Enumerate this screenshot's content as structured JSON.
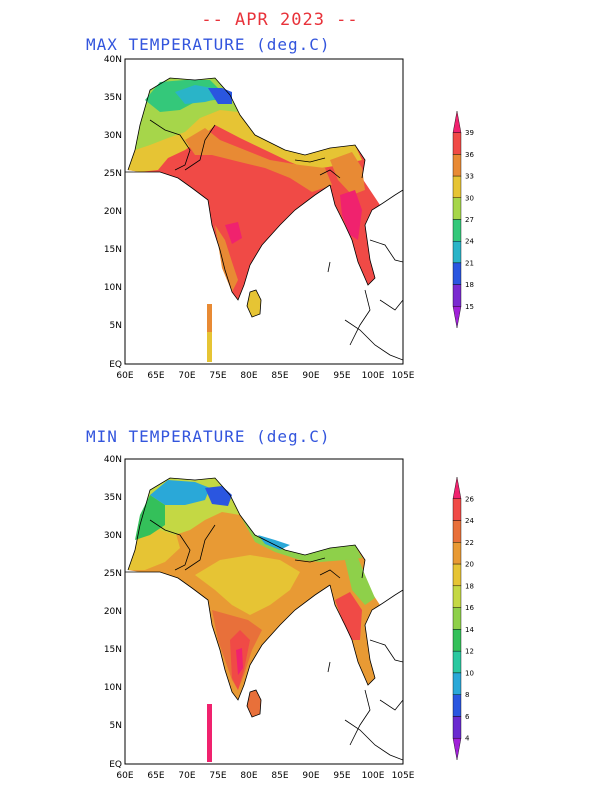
{
  "title": "-- APR 2023 --",
  "panels": [
    {
      "id": "max",
      "title": "MAX TEMPERATURE (deg.C)",
      "lat_ticks": [
        "40N",
        "35N",
        "30N",
        "25N",
        "20N",
        "15N",
        "10N",
        "5N",
        "EQ"
      ],
      "lon_ticks": [
        "60E",
        "65E",
        "70E",
        "75E",
        "80E",
        "85E",
        "90E",
        "95E",
        "100E",
        "105E"
      ],
      "colorbar": {
        "levels": [
          "39",
          "36",
          "33",
          "30",
          "27",
          "24",
          "21",
          "18",
          "15"
        ],
        "colors": [
          "#f0226e",
          "#f04a46",
          "#e88a34",
          "#e6c434",
          "#a6d64a",
          "#34c87a",
          "#2ab4c8",
          "#2a56e0",
          "#7a2ad0",
          "#a020d8"
        ]
      }
    },
    {
      "id": "min",
      "title": "MIN TEMPERATURE (deg.C)",
      "lat_ticks": [
        "40N",
        "35N",
        "30N",
        "25N",
        "20N",
        "15N",
        "10N",
        "5N",
        "EQ"
      ],
      "lon_ticks": [
        "60E",
        "65E",
        "70E",
        "75E",
        "80E",
        "85E",
        "90E",
        "95E",
        "100E",
        "105E"
      ],
      "colorbar": {
        "levels": [
          "26",
          "24",
          "22",
          "20",
          "18",
          "16",
          "14",
          "12",
          "10",
          "8",
          "6",
          "4"
        ],
        "colors": [
          "#f0226e",
          "#f04a46",
          "#e8703a",
          "#e89a34",
          "#e6c434",
          "#c4d844",
          "#8ed04a",
          "#34c05a",
          "#2ac8a0",
          "#2aa8d8",
          "#2a56e0",
          "#6a2ad0",
          "#a020d8"
        ]
      }
    }
  ]
}
